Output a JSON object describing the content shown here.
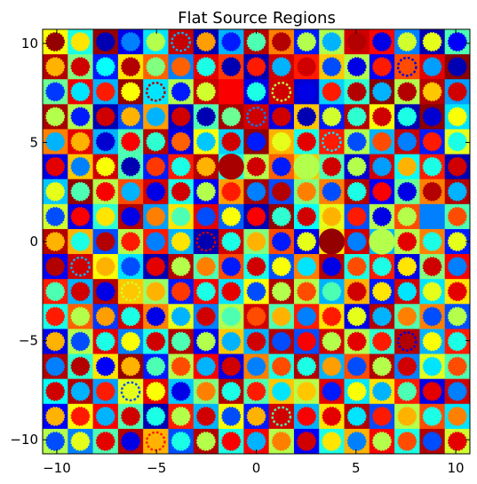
{
  "chart_data": {
    "type": "heatmap",
    "title": "Flat Source Regions",
    "xlabel": "",
    "ylabel": "",
    "xlim": [
      -10.71,
      10.71
    ],
    "ylim": [
      -10.71,
      10.71
    ],
    "xticks": [
      -10,
      -5,
      0,
      5,
      10
    ],
    "yticks": [
      -10,
      -5,
      0,
      5,
      10
    ],
    "xtick_labels": [
      "−10",
      "−5",
      "0",
      "5",
      "10"
    ],
    "ytick_labels": [
      "−10",
      "−5",
      "0",
      "5",
      "10"
    ],
    "grid": false,
    "legend": "none",
    "colormap": "jet",
    "cell_pitch": 1.26,
    "rows": 17,
    "cols": 17,
    "background_values": [
      [
        0.62,
        0.4,
        0.98,
        0.1,
        0.35,
        0.93,
        0.05,
        0.3,
        0.95,
        0.75,
        0.15,
        0.55,
        0.92,
        0.87,
        0.25,
        0.05,
        0.45
      ],
      [
        0.95,
        0.5,
        0.15,
        0.65,
        0.78,
        0.25,
        0.9,
        0.82,
        0.05,
        0.92,
        0.85,
        0.68,
        0.55,
        0.12,
        0.8,
        0.9,
        0.99
      ],
      [
        0.48,
        0.89,
        0.3,
        0.98,
        0.35,
        0.55,
        0.93,
        0.88,
        0.1,
        0.92,
        0.08,
        0.33,
        0.42,
        0.99,
        0.55,
        0.95,
        0.28
      ],
      [
        0.96,
        0.55,
        0.05,
        0.2,
        0.72,
        0.07,
        0.45,
        0.96,
        0.92,
        0.1,
        0.68,
        0.15,
        0.95,
        0.62,
        0.05,
        0.99,
        0.35
      ],
      [
        0.75,
        0.9,
        0.3,
        0.45,
        0.95,
        0.1,
        0.62,
        0.33,
        0.98,
        0.7,
        0.4,
        0.85,
        0.55,
        0.3,
        0.93,
        0.15,
        0.6
      ],
      [
        0.1,
        0.68,
        0.92,
        0.45,
        0.15,
        0.85,
        0.95,
        0.4,
        0.55,
        0.78,
        0.68,
        0.45,
        0.08,
        0.92,
        0.38,
        0.85,
        0.05
      ],
      [
        0.32,
        0.98,
        0.55,
        0.8,
        0.92,
        0.4,
        0.12,
        0.72,
        0.96,
        0.2,
        0.5,
        0.75,
        0.95,
        0.12,
        0.48,
        0.75,
        0.95
      ],
      [
        0.58,
        0.1,
        0.42,
        0.95,
        0.28,
        0.65,
        0.9,
        0.22,
        0.05,
        0.98,
        0.38,
        0.6,
        0.2,
        0.55,
        0.8,
        0.25,
        0.45
      ],
      [
        0.95,
        0.7,
        0.2,
        0.55,
        0.85,
        0.3,
        0.05,
        0.92,
        0.5,
        0.8,
        0.1,
        0.65,
        0.92,
        0.3,
        0.55,
        0.75,
        0.15
      ],
      [
        0.12,
        0.92,
        0.62,
        0.35,
        0.05,
        0.95,
        0.45,
        0.8,
        0.4,
        0.2,
        0.75,
        0.95,
        0.4,
        0.85,
        0.1,
        0.5,
        0.88
      ],
      [
        0.85,
        0.3,
        0.95,
        0.68,
        0.52,
        0.15,
        0.88,
        0.35,
        0.62,
        0.95,
        0.55,
        0.3,
        0.7,
        0.15,
        0.92,
        0.35,
        0.65
      ],
      [
        0.4,
        0.78,
        0.18,
        0.92,
        0.75,
        0.6,
        0.25,
        0.55,
        0.92,
        0.45,
        0.85,
        0.65,
        0.1,
        0.95,
        0.45,
        0.75,
        0.2
      ],
      [
        0.1,
        0.55,
        0.9,
        0.25,
        0.4,
        0.95,
        0.12,
        0.68,
        0.3,
        0.95,
        0.2,
        0.92,
        0.55,
        0.42,
        0.95,
        0.3,
        0.85
      ],
      [
        0.95,
        0.42,
        0.65,
        0.98,
        0.15,
        0.55,
        0.88,
        0.1,
        0.75,
        0.4,
        0.95,
        0.3,
        0.8,
        0.95,
        0.25,
        0.6,
        0.45
      ],
      [
        0.38,
        0.95,
        0.28,
        0.6,
        0.9,
        0.32,
        0.5,
        0.95,
        0.45,
        0.68,
        0.55,
        0.9,
        0.35,
        0.65,
        0.85,
        0.1,
        0.92
      ],
      [
        0.12,
        0.62,
        0.88,
        0.45,
        0.05,
        0.85,
        0.3,
        0.62,
        0.15,
        0.92,
        0.3,
        0.65,
        0.95,
        0.2,
        0.55,
        0.8,
        0.35
      ],
      [
        0.55,
        0.25,
        0.45,
        0.95,
        0.7,
        0.2,
        0.95,
        0.4,
        0.88,
        0.55,
        0.12,
        0.4,
        0.7,
        0.88,
        0.4,
        0.95,
        0.58
      ]
    ],
    "circle_values": [
      [
        0.98,
        0.65,
        0.05,
        0.25,
        0.55,
        0.3,
        0.72,
        0.15,
        0.45,
        0.95,
        0.55,
        0.3,
        0.95,
        0.1,
        0.58,
        0.6,
        0.12
      ],
      [
        0.7,
        0.92,
        0.38,
        0.95,
        0.5,
        0.78,
        0.4,
        0.05,
        0.85,
        0.3,
        0.92,
        0.2,
        0.1,
        0.85,
        0.1,
        0.28,
        0.05
      ],
      [
        0.18,
        0.35,
        0.85,
        0.62,
        0.95,
        0.15,
        0.58,
        0.88,
        0.4,
        0.55,
        0.1,
        0.85,
        0.95,
        0.3,
        0.95,
        0.68,
        0.92
      ],
      [
        0.55,
        0.15,
        0.92,
        0.7,
        0.3,
        0.92,
        0.05,
        0.48,
        0.25,
        0.92,
        0.05,
        0.58,
        0.42,
        0.92,
        0.4,
        0.08,
        0.62
      ],
      [
        0.3,
        0.7,
        0.08,
        0.88,
        0.42,
        0.78,
        0.32,
        0.92,
        0.15,
        0.6,
        0.9,
        0.35,
        0.2,
        0.8,
        0.25,
        0.85,
        0.4
      ],
      [
        0.9,
        0.25,
        0.62,
        0.05,
        0.82,
        0.4,
        0.7,
        0.2,
        0.92,
        0.15,
        0.62,
        0.92,
        0.55,
        0.28,
        0.7,
        0.4,
        0.92
      ],
      [
        0.6,
        0.45,
        0.88,
        0.3,
        0.1,
        0.92,
        0.55,
        0.85,
        0.25,
        0.95,
        0.75,
        0.2,
        0.4,
        0.88,
        0.1,
        0.95,
        0.3
      ],
      [
        0.2,
        0.88,
        0.65,
        0.1,
        0.75,
        0.45,
        0.2,
        0.62,
        0.88,
        0.42,
        0.92,
        0.7,
        0.85,
        0.1,
        0.55,
        0.25,
        0.8
      ],
      [
        0.7,
        0.4,
        0.95,
        0.85,
        0.25,
        0.65,
        0.92,
        0.4,
        0.7,
        0.15,
        0.6,
        0.95,
        0.25,
        0.7,
        0.9,
        0.4,
        0.6
      ],
      [
        0.95,
        0.3,
        0.7,
        0.2,
        0.9,
        0.55,
        0.75,
        0.15,
        0.92,
        0.62,
        0.35,
        0.1,
        0.8,
        0.4,
        0.65,
        0.92,
        0.25
      ],
      [
        0.45,
        0.92,
        0.1,
        0.58,
        0.7,
        0.82,
        0.4,
        0.9,
        0.2,
        0.55,
        0.8,
        0.45,
        0.92,
        0.65,
        0.35,
        0.6,
        0.9
      ],
      [
        0.85,
        0.55,
        0.72,
        0.4,
        0.1,
        0.3,
        0.92,
        0.45,
        0.8,
        0.7,
        0.25,
        0.85,
        0.6,
        0.3,
        0.75,
        0.2,
        0.55
      ],
      [
        0.7,
        0.2,
        0.4,
        0.62,
        0.92,
        0.45,
        0.55,
        0.3,
        0.92,
        0.2,
        0.88,
        0.55,
        0.9,
        0.85,
        0.1,
        0.62,
        0.4
      ],
      [
        0.25,
        0.95,
        0.12,
        0.7,
        0.45,
        0.8,
        0.3,
        0.92,
        0.25,
        0.8,
        0.4,
        0.72,
        0.2,
        0.55,
        0.92,
        0.35,
        0.8
      ],
      [
        0.92,
        0.3,
        0.85,
        0.2,
        0.62,
        0.1,
        0.75,
        0.4,
        0.85,
        0.35,
        0.68,
        0.15,
        0.62,
        0.3,
        0.45,
        0.9,
        0.25
      ],
      [
        0.7,
        0.85,
        0.3,
        0.92,
        0.4,
        0.55,
        0.92,
        0.2,
        0.7,
        0.45,
        0.88,
        0.9,
        0.35,
        0.85,
        0.7,
        0.4,
        0.75
      ],
      [
        0.2,
        0.6,
        0.9,
        0.1,
        0.85,
        0.4,
        0.55,
        0.88,
        0.3,
        0.75,
        0.92,
        0.65,
        0.25,
        0.55,
        0.8,
        0.2,
        0.9
      ]
    ],
    "ring_only_cells": [
      [
        0,
        5
      ],
      [
        1,
        14
      ],
      [
        2,
        4
      ],
      [
        2,
        9
      ],
      [
        3,
        8
      ],
      [
        4,
        11
      ],
      [
        8,
        6
      ],
      [
        9,
        1
      ],
      [
        10,
        3
      ],
      [
        12,
        14
      ],
      [
        14,
        3
      ],
      [
        15,
        9
      ],
      [
        16,
        4
      ]
    ],
    "large_blob_cells": [
      [
        5,
        7,
        0.96
      ],
      [
        5,
        10,
        0.55
      ],
      [
        8,
        11,
        0.98
      ],
      [
        8,
        13,
        0.55
      ]
    ]
  }
}
